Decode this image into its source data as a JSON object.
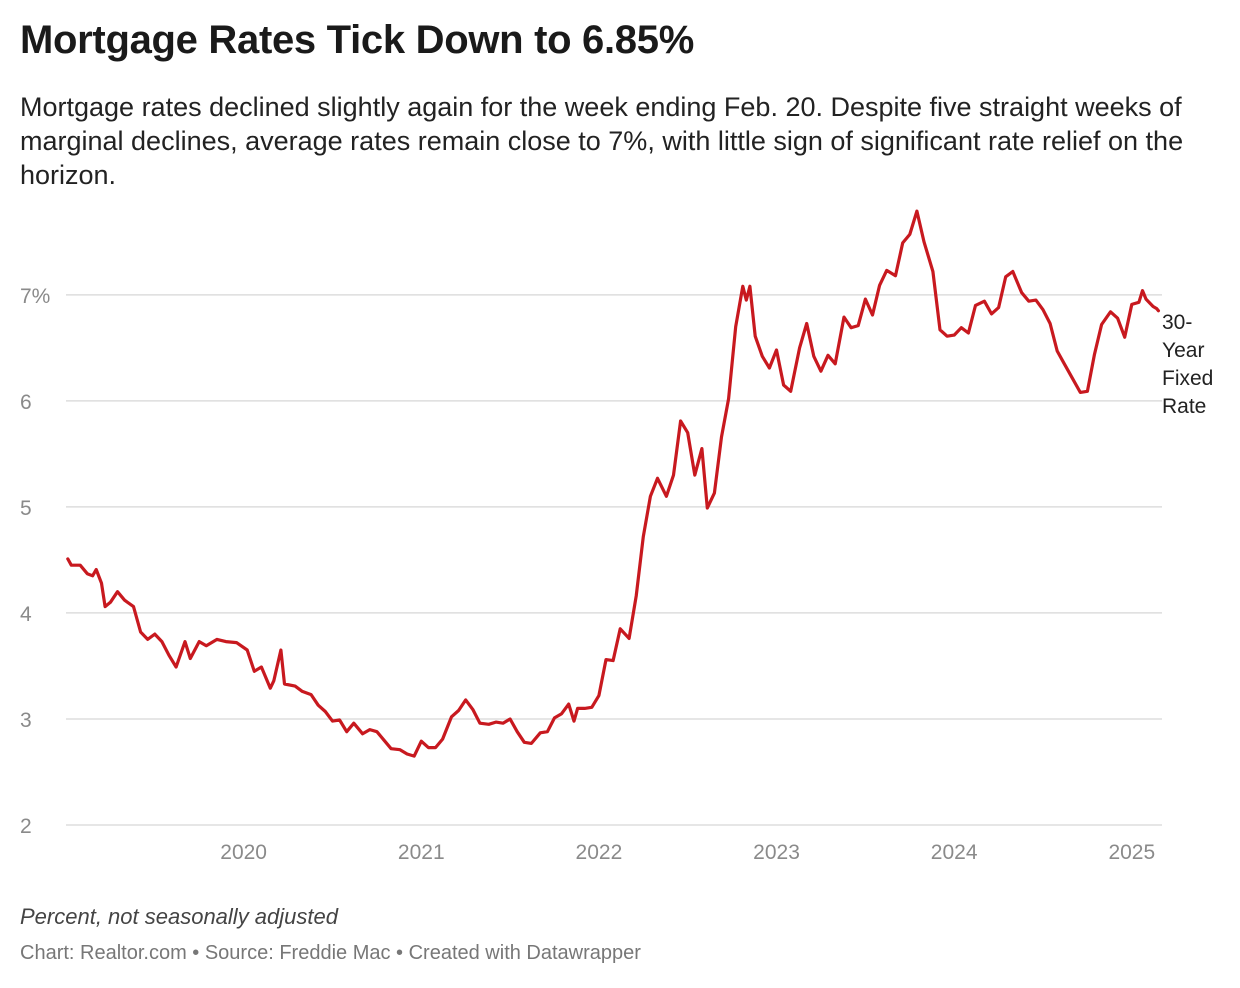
{
  "header": {
    "title": "Mortgage Rates Tick Down to 6.85%",
    "subtitle": "Mortgage rates declined slightly again for the week ending Feb. 20. Despite five straight weeks of marginal declines, average rates remain close to 7%, with little sign of significant rate relief on the horizon."
  },
  "footer": {
    "note": "Percent, not seasonally adjusted",
    "credit": "Chart: Realtor.com • Source: Freddie Mac • Created with Datawrapper"
  },
  "colors": {
    "line": "#c8191f",
    "grid": "#dddddd",
    "tick": "#8a8a8a"
  },
  "chart_data": {
    "type": "line",
    "title": "Mortgage Rates Tick Down to 6.85%",
    "xlabel": "",
    "ylabel": "",
    "ylim": [
      2,
      7.8
    ],
    "xlim": [
      2019.0,
      2025.17
    ],
    "y_ticks": [
      {
        "value": 7,
        "label": "7%"
      },
      {
        "value": 6,
        "label": "6"
      },
      {
        "value": 5,
        "label": "5"
      },
      {
        "value": 4,
        "label": "4"
      },
      {
        "value": 3,
        "label": "3"
      },
      {
        "value": 2,
        "label": "2"
      }
    ],
    "x_ticks": [
      {
        "value": 2020,
        "label": "2020"
      },
      {
        "value": 2021,
        "label": "2021"
      },
      {
        "value": 2022,
        "label": "2022"
      },
      {
        "value": 2023,
        "label": "2023"
      },
      {
        "value": 2024,
        "label": "2024"
      },
      {
        "value": 2025,
        "label": "2025"
      }
    ],
    "grid": true,
    "series": [
      {
        "name": "30-Year Fixed Rate",
        "label_lines": [
          "30-",
          "Year",
          "Fixed",
          "Rate"
        ],
        "points": [
          [
            2019.01,
            4.51
          ],
          [
            2019.03,
            4.45
          ],
          [
            2019.08,
            4.45
          ],
          [
            2019.12,
            4.37
          ],
          [
            2019.15,
            4.35
          ],
          [
            2019.17,
            4.41
          ],
          [
            2019.2,
            4.28
          ],
          [
            2019.22,
            4.06
          ],
          [
            2019.25,
            4.1
          ],
          [
            2019.29,
            4.2
          ],
          [
            2019.33,
            4.12
          ],
          [
            2019.38,
            4.06
          ],
          [
            2019.42,
            3.82
          ],
          [
            2019.46,
            3.75
          ],
          [
            2019.5,
            3.8
          ],
          [
            2019.54,
            3.73
          ],
          [
            2019.58,
            3.6
          ],
          [
            2019.62,
            3.49
          ],
          [
            2019.67,
            3.73
          ],
          [
            2019.7,
            3.57
          ],
          [
            2019.75,
            3.73
          ],
          [
            2019.79,
            3.69
          ],
          [
            2019.85,
            3.75
          ],
          [
            2019.9,
            3.73
          ],
          [
            2019.96,
            3.72
          ],
          [
            2020.02,
            3.65
          ],
          [
            2020.06,
            3.45
          ],
          [
            2020.1,
            3.49
          ],
          [
            2020.15,
            3.29
          ],
          [
            2020.17,
            3.36
          ],
          [
            2020.21,
            3.65
          ],
          [
            2020.23,
            3.33
          ],
          [
            2020.29,
            3.31
          ],
          [
            2020.33,
            3.26
          ],
          [
            2020.38,
            3.23
          ],
          [
            2020.42,
            3.13
          ],
          [
            2020.46,
            3.07
          ],
          [
            2020.5,
            2.98
          ],
          [
            2020.54,
            2.99
          ],
          [
            2020.58,
            2.88
          ],
          [
            2020.62,
            2.96
          ],
          [
            2020.67,
            2.86
          ],
          [
            2020.71,
            2.9
          ],
          [
            2020.75,
            2.88
          ],
          [
            2020.79,
            2.8
          ],
          [
            2020.83,
            2.72
          ],
          [
            2020.88,
            2.71
          ],
          [
            2020.92,
            2.67
          ],
          [
            2020.96,
            2.65
          ],
          [
            2021.0,
            2.79
          ],
          [
            2021.04,
            2.73
          ],
          [
            2021.08,
            2.73
          ],
          [
            2021.12,
            2.81
          ],
          [
            2021.17,
            3.02
          ],
          [
            2021.21,
            3.08
          ],
          [
            2021.25,
            3.18
          ],
          [
            2021.29,
            3.09
          ],
          [
            2021.33,
            2.96
          ],
          [
            2021.38,
            2.95
          ],
          [
            2021.42,
            2.97
          ],
          [
            2021.46,
            2.96
          ],
          [
            2021.5,
            3.0
          ],
          [
            2021.54,
            2.88
          ],
          [
            2021.58,
            2.78
          ],
          [
            2021.62,
            2.77
          ],
          [
            2021.67,
            2.87
          ],
          [
            2021.71,
            2.88
          ],
          [
            2021.75,
            3.01
          ],
          [
            2021.79,
            3.05
          ],
          [
            2021.83,
            3.14
          ],
          [
            2021.86,
            2.98
          ],
          [
            2021.88,
            3.1
          ],
          [
            2021.92,
            3.1
          ],
          [
            2021.96,
            3.11
          ],
          [
            2022.0,
            3.22
          ],
          [
            2022.04,
            3.56
          ],
          [
            2022.08,
            3.55
          ],
          [
            2022.12,
            3.85
          ],
          [
            2022.17,
            3.76
          ],
          [
            2022.21,
            4.16
          ],
          [
            2022.25,
            4.72
          ],
          [
            2022.29,
            5.1
          ],
          [
            2022.33,
            5.27
          ],
          [
            2022.38,
            5.1
          ],
          [
            2022.42,
            5.3
          ],
          [
            2022.46,
            5.81
          ],
          [
            2022.5,
            5.7
          ],
          [
            2022.54,
            5.3
          ],
          [
            2022.58,
            5.55
          ],
          [
            2022.61,
            4.99
          ],
          [
            2022.65,
            5.13
          ],
          [
            2022.69,
            5.66
          ],
          [
            2022.73,
            6.02
          ],
          [
            2022.77,
            6.7
          ],
          [
            2022.81,
            7.08
          ],
          [
            2022.83,
            6.95
          ],
          [
            2022.85,
            7.08
          ],
          [
            2022.88,
            6.61
          ],
          [
            2022.92,
            6.42
          ],
          [
            2022.96,
            6.31
          ],
          [
            2023.0,
            6.48
          ],
          [
            2023.04,
            6.15
          ],
          [
            2023.08,
            6.09
          ],
          [
            2023.13,
            6.5
          ],
          [
            2023.17,
            6.73
          ],
          [
            2023.21,
            6.42
          ],
          [
            2023.25,
            6.28
          ],
          [
            2023.29,
            6.43
          ],
          [
            2023.33,
            6.35
          ],
          [
            2023.38,
            6.79
          ],
          [
            2023.42,
            6.69
          ],
          [
            2023.46,
            6.71
          ],
          [
            2023.5,
            6.96
          ],
          [
            2023.54,
            6.81
          ],
          [
            2023.58,
            7.09
          ],
          [
            2023.62,
            7.23
          ],
          [
            2023.67,
            7.18
          ],
          [
            2023.71,
            7.49
          ],
          [
            2023.75,
            7.57
          ],
          [
            2023.79,
            7.79
          ],
          [
            2023.83,
            7.5
          ],
          [
            2023.88,
            7.22
          ],
          [
            2023.92,
            6.67
          ],
          [
            2023.96,
            6.61
          ],
          [
            2024.0,
            6.62
          ],
          [
            2024.04,
            6.69
          ],
          [
            2024.08,
            6.64
          ],
          [
            2024.12,
            6.9
          ],
          [
            2024.17,
            6.94
          ],
          [
            2024.21,
            6.82
          ],
          [
            2024.25,
            6.88
          ],
          [
            2024.29,
            7.17
          ],
          [
            2024.33,
            7.22
          ],
          [
            2024.38,
            7.02
          ],
          [
            2024.42,
            6.94
          ],
          [
            2024.46,
            6.95
          ],
          [
            2024.5,
            6.86
          ],
          [
            2024.54,
            6.73
          ],
          [
            2024.58,
            6.47
          ],
          [
            2024.62,
            6.35
          ],
          [
            2024.67,
            6.2
          ],
          [
            2024.71,
            6.08
          ],
          [
            2024.75,
            6.09
          ],
          [
            2024.79,
            6.44
          ],
          [
            2024.83,
            6.72
          ],
          [
            2024.88,
            6.84
          ],
          [
            2024.92,
            6.78
          ],
          [
            2024.96,
            6.6
          ],
          [
            2025.0,
            6.91
          ],
          [
            2025.04,
            6.93
          ],
          [
            2025.06,
            7.04
          ],
          [
            2025.08,
            6.96
          ],
          [
            2025.12,
            6.89
          ],
          [
            2025.14,
            6.87
          ],
          [
            2025.15,
            6.85
          ]
        ]
      }
    ]
  }
}
